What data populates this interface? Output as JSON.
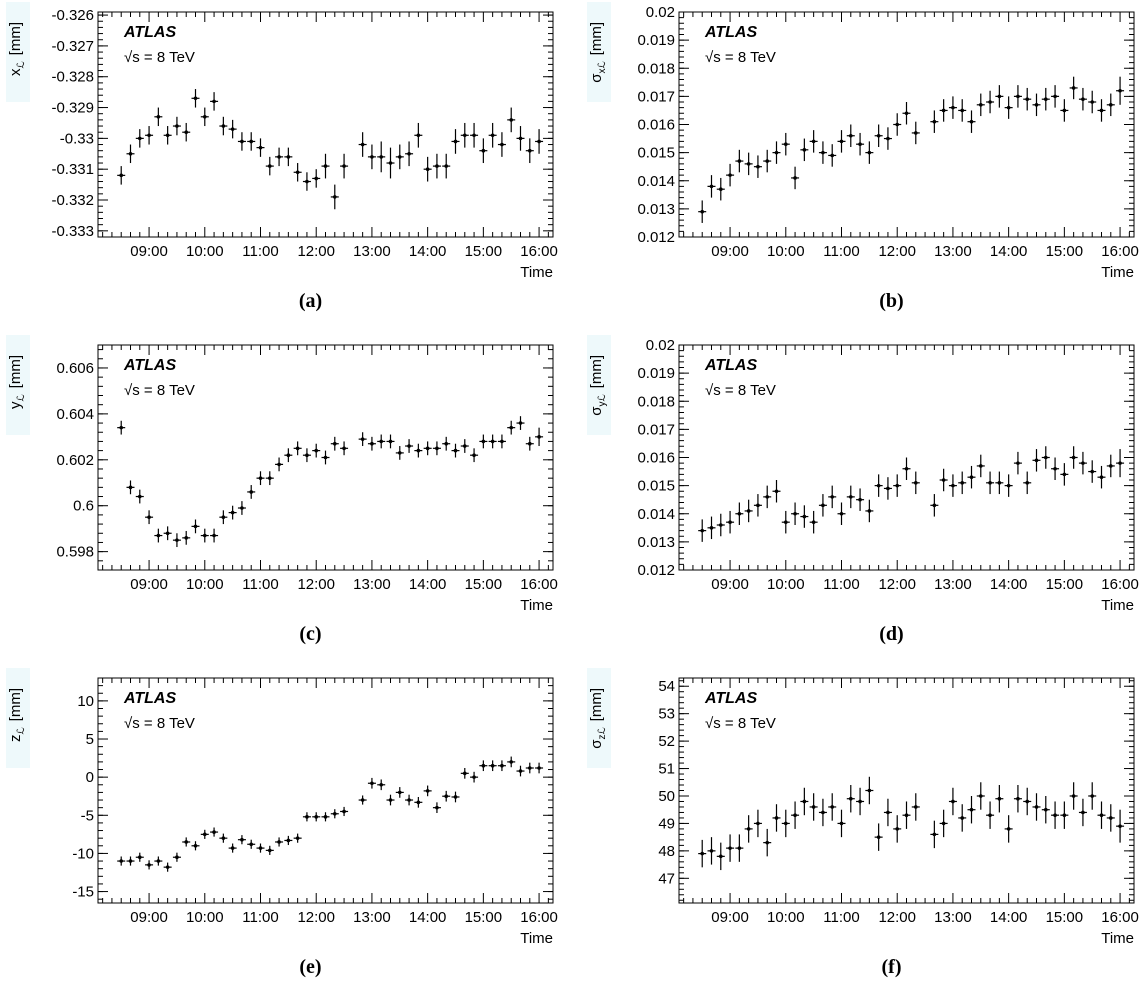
{
  "figure": {
    "experiment_label": "ATLAS",
    "energy_label": "√s = 8 TeV",
    "xlabel": "Time"
  },
  "chart_data": [
    {
      "id": "a",
      "type": "scatter",
      "caption": "(a)",
      "ylabel_symbol": "x",
      "ylabel_sub": "ℒ",
      "ylabel_unit": "[mm]",
      "ylim": [
        -0.3332,
        -0.3259
      ],
      "yticks": [
        -0.333,
        -0.332,
        -0.331,
        -0.33,
        -0.329,
        -0.328,
        -0.327,
        -0.326
      ],
      "ytick_labels": [
        "-0.333",
        "-0.332",
        "-0.331",
        "-0.33",
        "-0.329",
        "-0.328",
        "-0.327",
        "-0.326"
      ],
      "xlim": [
        "08:05",
        "16:15"
      ],
      "xticks": [
        "09:00",
        "10:00",
        "11:00",
        "12:00",
        "13:00",
        "14:00",
        "15:00",
        "16:00"
      ],
      "x": [
        "08:30",
        "08:40",
        "08:50",
        "09:00",
        "09:10",
        "09:20",
        "09:30",
        "09:40",
        "09:50",
        "10:00",
        "10:10",
        "10:20",
        "10:30",
        "10:40",
        "10:50",
        "11:00",
        "11:10",
        "11:20",
        "11:30",
        "11:40",
        "11:50",
        "12:00",
        "12:10",
        "12:20",
        "12:30",
        "12:50",
        "13:00",
        "13:10",
        "13:20",
        "13:30",
        "13:40",
        "13:50",
        "14:00",
        "14:10",
        "14:20",
        "14:30",
        "14:40",
        "14:50",
        "15:00",
        "15:10",
        "15:20",
        "15:30",
        "15:40",
        "15:50",
        "16:00"
      ],
      "y": [
        -0.3312,
        -0.3305,
        -0.33,
        -0.3299,
        -0.3293,
        -0.3299,
        -0.3296,
        -0.3298,
        -0.3287,
        -0.3293,
        -0.3288,
        -0.3296,
        -0.3297,
        -0.3301,
        -0.3301,
        -0.3303,
        -0.3309,
        -0.3306,
        -0.3306,
        -0.3311,
        -0.3314,
        -0.3313,
        -0.3309,
        -0.3319,
        -0.3309,
        -0.3302,
        -0.3306,
        -0.3306,
        -0.3308,
        -0.3306,
        -0.3305,
        -0.3299,
        -0.331,
        -0.3309,
        -0.3309,
        -0.3301,
        -0.3299,
        -0.3299,
        -0.3304,
        -0.3299,
        -0.3302,
        -0.3294,
        -0.33,
        -0.3304,
        -0.3301
      ],
      "yerr": [
        0.0003,
        0.0003,
        0.0003,
        0.0003,
        0.0003,
        0.0003,
        0.0003,
        0.0003,
        0.0003,
        0.0003,
        0.0003,
        0.0003,
        0.0003,
        0.0003,
        0.0003,
        0.0003,
        0.0003,
        0.0003,
        0.0003,
        0.0003,
        0.0003,
        0.0003,
        0.0004,
        0.0004,
        0.0004,
        0.0004,
        0.0004,
        0.0005,
        0.0005,
        0.0004,
        0.0004,
        0.0004,
        0.0004,
        0.0004,
        0.0004,
        0.0004,
        0.0004,
        0.0004,
        0.0004,
        0.0004,
        0.0004,
        0.0004,
        0.0004,
        0.0004,
        0.0004
      ]
    },
    {
      "id": "b",
      "type": "scatter",
      "caption": "(b)",
      "ylabel_symbol": "σ",
      "ylabel_sub": "xℒ",
      "ylabel_unit": "[mm]",
      "ylim": [
        0.012,
        0.02
      ],
      "yticks": [
        0.012,
        0.013,
        0.014,
        0.015,
        0.016,
        0.017,
        0.018,
        0.019,
        0.02
      ],
      "ytick_labels": [
        "0.012",
        "0.013",
        "0.014",
        "0.015",
        "0.016",
        "0.017",
        "0.018",
        "0.019",
        "0.02"
      ],
      "xlim": [
        "08:05",
        "16:15"
      ],
      "xticks": [
        "09:00",
        "10:00",
        "11:00",
        "12:00",
        "13:00",
        "14:00",
        "15:00",
        "16:00"
      ],
      "x": [
        "08:30",
        "08:40",
        "08:50",
        "09:00",
        "09:10",
        "09:20",
        "09:30",
        "09:40",
        "09:50",
        "10:00",
        "10:10",
        "10:20",
        "10:30",
        "10:40",
        "10:50",
        "11:00",
        "11:10",
        "11:20",
        "11:30",
        "11:40",
        "11:50",
        "12:00",
        "12:10",
        "12:20",
        "12:40",
        "12:50",
        "13:00",
        "13:10",
        "13:20",
        "13:30",
        "13:40",
        "13:50",
        "14:00",
        "14:10",
        "14:20",
        "14:30",
        "14:40",
        "14:50",
        "15:00",
        "15:10",
        "15:20",
        "15:30",
        "15:40",
        "15:50",
        "16:00"
      ],
      "y": [
        0.0129,
        0.0138,
        0.0137,
        0.0142,
        0.0147,
        0.0146,
        0.0145,
        0.0147,
        0.015,
        0.0153,
        0.0141,
        0.0151,
        0.0154,
        0.015,
        0.0149,
        0.0154,
        0.0156,
        0.0153,
        0.015,
        0.0156,
        0.0155,
        0.016,
        0.0164,
        0.0157,
        0.0161,
        0.0165,
        0.0166,
        0.0165,
        0.0161,
        0.0167,
        0.0168,
        0.017,
        0.0166,
        0.017,
        0.0169,
        0.0167,
        0.0169,
        0.017,
        0.0165,
        0.0173,
        0.0169,
        0.0168,
        0.0165,
        0.0167,
        0.0172
      ],
      "yerr": [
        0.0004,
        0.0004,
        0.0004,
        0.0004,
        0.0004,
        0.0004,
        0.0004,
        0.0004,
        0.0004,
        0.0004,
        0.0004,
        0.0004,
        0.0004,
        0.0004,
        0.0004,
        0.0004,
        0.0004,
        0.0004,
        0.0004,
        0.0004,
        0.0004,
        0.0004,
        0.0004,
        0.0004,
        0.0004,
        0.0004,
        0.0004,
        0.0004,
        0.0004,
        0.0004,
        0.0004,
        0.0004,
        0.0004,
        0.0004,
        0.0004,
        0.0004,
        0.0004,
        0.0004,
        0.0004,
        0.0004,
        0.0004,
        0.0004,
        0.0004,
        0.0004,
        0.0005
      ]
    },
    {
      "id": "c",
      "type": "scatter",
      "caption": "(c)",
      "ylabel_symbol": "y",
      "ylabel_sub": "ℒ",
      "ylabel_unit": "[mm]",
      "ylim": [
        0.5972,
        0.607
      ],
      "yticks": [
        0.598,
        0.6,
        0.602,
        0.604,
        0.606
      ],
      "ytick_labels": [
        "0.598",
        "0.6",
        "0.602",
        "0.604",
        "0.606"
      ],
      "xlim": [
        "08:05",
        "16:15"
      ],
      "xticks": [
        "09:00",
        "10:00",
        "11:00",
        "12:00",
        "13:00",
        "14:00",
        "15:00",
        "16:00"
      ],
      "x": [
        "08:30",
        "08:40",
        "08:50",
        "09:00",
        "09:10",
        "09:20",
        "09:30",
        "09:40",
        "09:50",
        "10:00",
        "10:10",
        "10:20",
        "10:30",
        "10:40",
        "10:50",
        "11:00",
        "11:10",
        "11:20",
        "11:30",
        "11:40",
        "11:50",
        "12:00",
        "12:10",
        "12:20",
        "12:30",
        "12:50",
        "13:00",
        "13:10",
        "13:20",
        "13:30",
        "13:40",
        "13:50",
        "14:00",
        "14:10",
        "14:20",
        "14:30",
        "14:40",
        "14:50",
        "15:00",
        "15:10",
        "15:20",
        "15:30",
        "15:40",
        "15:50",
        "16:00"
      ],
      "y": [
        0.6034,
        0.6008,
        0.6004,
        0.5995,
        0.5987,
        0.5988,
        0.5985,
        0.5986,
        0.5991,
        0.5987,
        0.5987,
        0.5995,
        0.5997,
        0.5999,
        0.6006,
        0.6012,
        0.6012,
        0.6018,
        0.6022,
        0.6025,
        0.6022,
        0.6024,
        0.6021,
        0.6027,
        0.6025,
        0.6029,
        0.6027,
        0.6028,
        0.6028,
        0.6023,
        0.6026,
        0.6024,
        0.6025,
        0.6025,
        0.6027,
        0.6024,
        0.6026,
        0.6022,
        0.6028,
        0.6028,
        0.6028,
        0.6034,
        0.6036,
        0.6027,
        0.603
      ],
      "yerr": [
        0.0003,
        0.0003,
        0.0003,
        0.0003,
        0.0003,
        0.0003,
        0.0003,
        0.0003,
        0.0003,
        0.0003,
        0.0003,
        0.0003,
        0.0003,
        0.0003,
        0.0003,
        0.0003,
        0.0003,
        0.0003,
        0.0003,
        0.0003,
        0.0003,
        0.0003,
        0.0003,
        0.0003,
        0.0003,
        0.0003,
        0.0003,
        0.0003,
        0.0003,
        0.0003,
        0.0003,
        0.0003,
        0.0003,
        0.0003,
        0.0003,
        0.0003,
        0.0003,
        0.0003,
        0.0003,
        0.0003,
        0.0003,
        0.0003,
        0.0003,
        0.0003,
        0.0004
      ]
    },
    {
      "id": "d",
      "type": "scatter",
      "caption": "(d)",
      "ylabel_symbol": "σ",
      "ylabel_sub": "yℒ",
      "ylabel_unit": "[mm]",
      "ylim": [
        0.012,
        0.02
      ],
      "yticks": [
        0.012,
        0.013,
        0.014,
        0.015,
        0.016,
        0.017,
        0.018,
        0.019,
        0.02
      ],
      "ytick_labels": [
        "0.012",
        "0.013",
        "0.014",
        "0.015",
        "0.016",
        "0.017",
        "0.018",
        "0.019",
        "0.02"
      ],
      "xlim": [
        "08:05",
        "16:15"
      ],
      "xticks": [
        "09:00",
        "10:00",
        "11:00",
        "12:00",
        "13:00",
        "14:00",
        "15:00",
        "16:00"
      ],
      "x": [
        "08:30",
        "08:40",
        "08:50",
        "09:00",
        "09:10",
        "09:20",
        "09:30",
        "09:40",
        "09:50",
        "10:00",
        "10:10",
        "10:20",
        "10:30",
        "10:40",
        "10:50",
        "11:00",
        "11:10",
        "11:20",
        "11:30",
        "11:40",
        "11:50",
        "12:00",
        "12:10",
        "12:20",
        "12:40",
        "12:50",
        "13:00",
        "13:10",
        "13:20",
        "13:30",
        "13:40",
        "13:50",
        "14:00",
        "14:10",
        "14:20",
        "14:30",
        "14:40",
        "14:50",
        "15:00",
        "15:10",
        "15:20",
        "15:30",
        "15:40",
        "15:50",
        "16:00"
      ],
      "y": [
        0.0134,
        0.0135,
        0.0136,
        0.0137,
        0.014,
        0.0141,
        0.0143,
        0.0146,
        0.0148,
        0.0137,
        0.014,
        0.0139,
        0.0137,
        0.0143,
        0.0146,
        0.014,
        0.0146,
        0.0145,
        0.0141,
        0.015,
        0.0149,
        0.015,
        0.0156,
        0.0151,
        0.0143,
        0.0152,
        0.015,
        0.0151,
        0.0153,
        0.0157,
        0.0151,
        0.0151,
        0.015,
        0.0158,
        0.0151,
        0.0159,
        0.016,
        0.0156,
        0.0154,
        0.016,
        0.0158,
        0.0155,
        0.0153,
        0.0157,
        0.0158
      ],
      "yerr": [
        0.0004,
        0.0004,
        0.0004,
        0.0004,
        0.0004,
        0.0004,
        0.0004,
        0.0004,
        0.0004,
        0.0004,
        0.0004,
        0.0004,
        0.0004,
        0.0004,
        0.0004,
        0.0004,
        0.0004,
        0.0004,
        0.0004,
        0.0004,
        0.0004,
        0.0004,
        0.0004,
        0.0004,
        0.0004,
        0.0004,
        0.0004,
        0.0004,
        0.0004,
        0.0004,
        0.0004,
        0.0004,
        0.0004,
        0.0004,
        0.0004,
        0.0004,
        0.0004,
        0.0004,
        0.0004,
        0.0004,
        0.0004,
        0.0004,
        0.0004,
        0.0004,
        0.0005
      ]
    },
    {
      "id": "e",
      "type": "scatter",
      "caption": "(e)",
      "ylabel_symbol": "z",
      "ylabel_sub": "ℒ",
      "ylabel_unit": "[mm]",
      "ylim": [
        -16.5,
        13
      ],
      "yticks": [
        -15,
        -10,
        -5,
        0,
        5,
        10
      ],
      "ytick_labels": [
        "-15",
        "-10",
        "-5",
        "0",
        "5",
        "10"
      ],
      "xlim": [
        "08:05",
        "16:15"
      ],
      "xticks": [
        "09:00",
        "10:00",
        "11:00",
        "12:00",
        "13:00",
        "14:00",
        "15:00",
        "16:00"
      ],
      "x": [
        "08:30",
        "08:40",
        "08:50",
        "09:00",
        "09:10",
        "09:20",
        "09:30",
        "09:40",
        "09:50",
        "10:00",
        "10:10",
        "10:20",
        "10:30",
        "10:40",
        "10:50",
        "11:00",
        "11:10",
        "11:20",
        "11:30",
        "11:40",
        "11:50",
        "12:00",
        "12:10",
        "12:20",
        "12:30",
        "12:50",
        "13:00",
        "13:10",
        "13:20",
        "13:30",
        "13:40",
        "13:50",
        "14:00",
        "14:10",
        "14:20",
        "14:30",
        "14:40",
        "14:50",
        "15:00",
        "15:10",
        "15:20",
        "15:30",
        "15:40",
        "15:50",
        "16:00"
      ],
      "y": [
        -11.0,
        -11.0,
        -10.5,
        -11.5,
        -11.0,
        -11.8,
        -10.5,
        -8.5,
        -9.0,
        -7.5,
        -7.2,
        -8.0,
        -9.3,
        -8.2,
        -8.8,
        -9.3,
        -9.6,
        -8.5,
        -8.3,
        -8.0,
        -5.2,
        -5.2,
        -5.2,
        -4.8,
        -4.5,
        -3.0,
        -0.8,
        -1.0,
        -3.0,
        -2.0,
        -3.0,
        -3.3,
        -1.8,
        -4.0,
        -2.5,
        -2.6,
        0.5,
        0.0,
        1.5,
        1.5,
        1.5,
        2.0,
        0.8,
        1.2,
        1.2
      ],
      "yerr": [
        0.6,
        0.6,
        0.6,
        0.6,
        0.6,
        0.6,
        0.6,
        0.6,
        0.6,
        0.6,
        0.6,
        0.6,
        0.6,
        0.6,
        0.6,
        0.6,
        0.6,
        0.6,
        0.6,
        0.6,
        0.6,
        0.6,
        0.6,
        0.6,
        0.6,
        0.6,
        0.7,
        0.7,
        0.7,
        0.7,
        0.7,
        0.7,
        0.7,
        0.7,
        0.7,
        0.7,
        0.7,
        0.7,
        0.7,
        0.7,
        0.7,
        0.7,
        0.7,
        0.7,
        0.7
      ]
    },
    {
      "id": "f",
      "type": "scatter",
      "caption": "(f)",
      "ylabel_symbol": "σ",
      "ylabel_sub": "zℒ",
      "ylabel_unit": "[mm]",
      "ylim": [
        46.1,
        54.3
      ],
      "yticks": [
        47,
        48,
        49,
        50,
        51,
        52,
        53,
        54
      ],
      "ytick_labels": [
        "47",
        "48",
        "49",
        "50",
        "51",
        "52",
        "53",
        "54"
      ],
      "xlim": [
        "08:05",
        "16:15"
      ],
      "xticks": [
        "09:00",
        "10:00",
        "11:00",
        "12:00",
        "13:00",
        "14:00",
        "15:00",
        "16:00"
      ],
      "x": [
        "08:30",
        "08:40",
        "08:50",
        "09:00",
        "09:10",
        "09:20",
        "09:30",
        "09:40",
        "09:50",
        "10:00",
        "10:10",
        "10:20",
        "10:30",
        "10:40",
        "10:50",
        "11:00",
        "11:10",
        "11:20",
        "11:30",
        "11:40",
        "11:50",
        "12:00",
        "12:10",
        "12:20",
        "12:40",
        "12:50",
        "13:00",
        "13:10",
        "13:20",
        "13:30",
        "13:40",
        "13:50",
        "14:00",
        "14:10",
        "14:20",
        "14:30",
        "14:40",
        "14:50",
        "15:00",
        "15:10",
        "15:20",
        "15:30",
        "15:40",
        "15:50",
        "16:00"
      ],
      "y": [
        47.9,
        48.0,
        47.8,
        48.1,
        48.1,
        48.8,
        49.0,
        48.3,
        49.2,
        49.0,
        49.3,
        49.8,
        49.6,
        49.4,
        49.6,
        49.0,
        49.9,
        49.8,
        50.2,
        48.5,
        49.4,
        48.8,
        49.3,
        49.6,
        48.6,
        49.0,
        49.8,
        49.2,
        49.5,
        50.0,
        49.3,
        49.9,
        48.8,
        49.9,
        49.8,
        49.6,
        49.5,
        49.3,
        49.3,
        50.0,
        49.4,
        50.0,
        49.3,
        49.2,
        48.9
      ],
      "yerr": [
        0.5,
        0.5,
        0.5,
        0.5,
        0.5,
        0.5,
        0.5,
        0.5,
        0.5,
        0.5,
        0.5,
        0.5,
        0.5,
        0.5,
        0.5,
        0.5,
        0.5,
        0.5,
        0.5,
        0.5,
        0.5,
        0.5,
        0.5,
        0.5,
        0.5,
        0.5,
        0.5,
        0.5,
        0.5,
        0.5,
        0.5,
        0.5,
        0.5,
        0.5,
        0.5,
        0.5,
        0.5,
        0.5,
        0.5,
        0.5,
        0.5,
        0.5,
        0.5,
        0.5,
        0.6
      ]
    }
  ]
}
